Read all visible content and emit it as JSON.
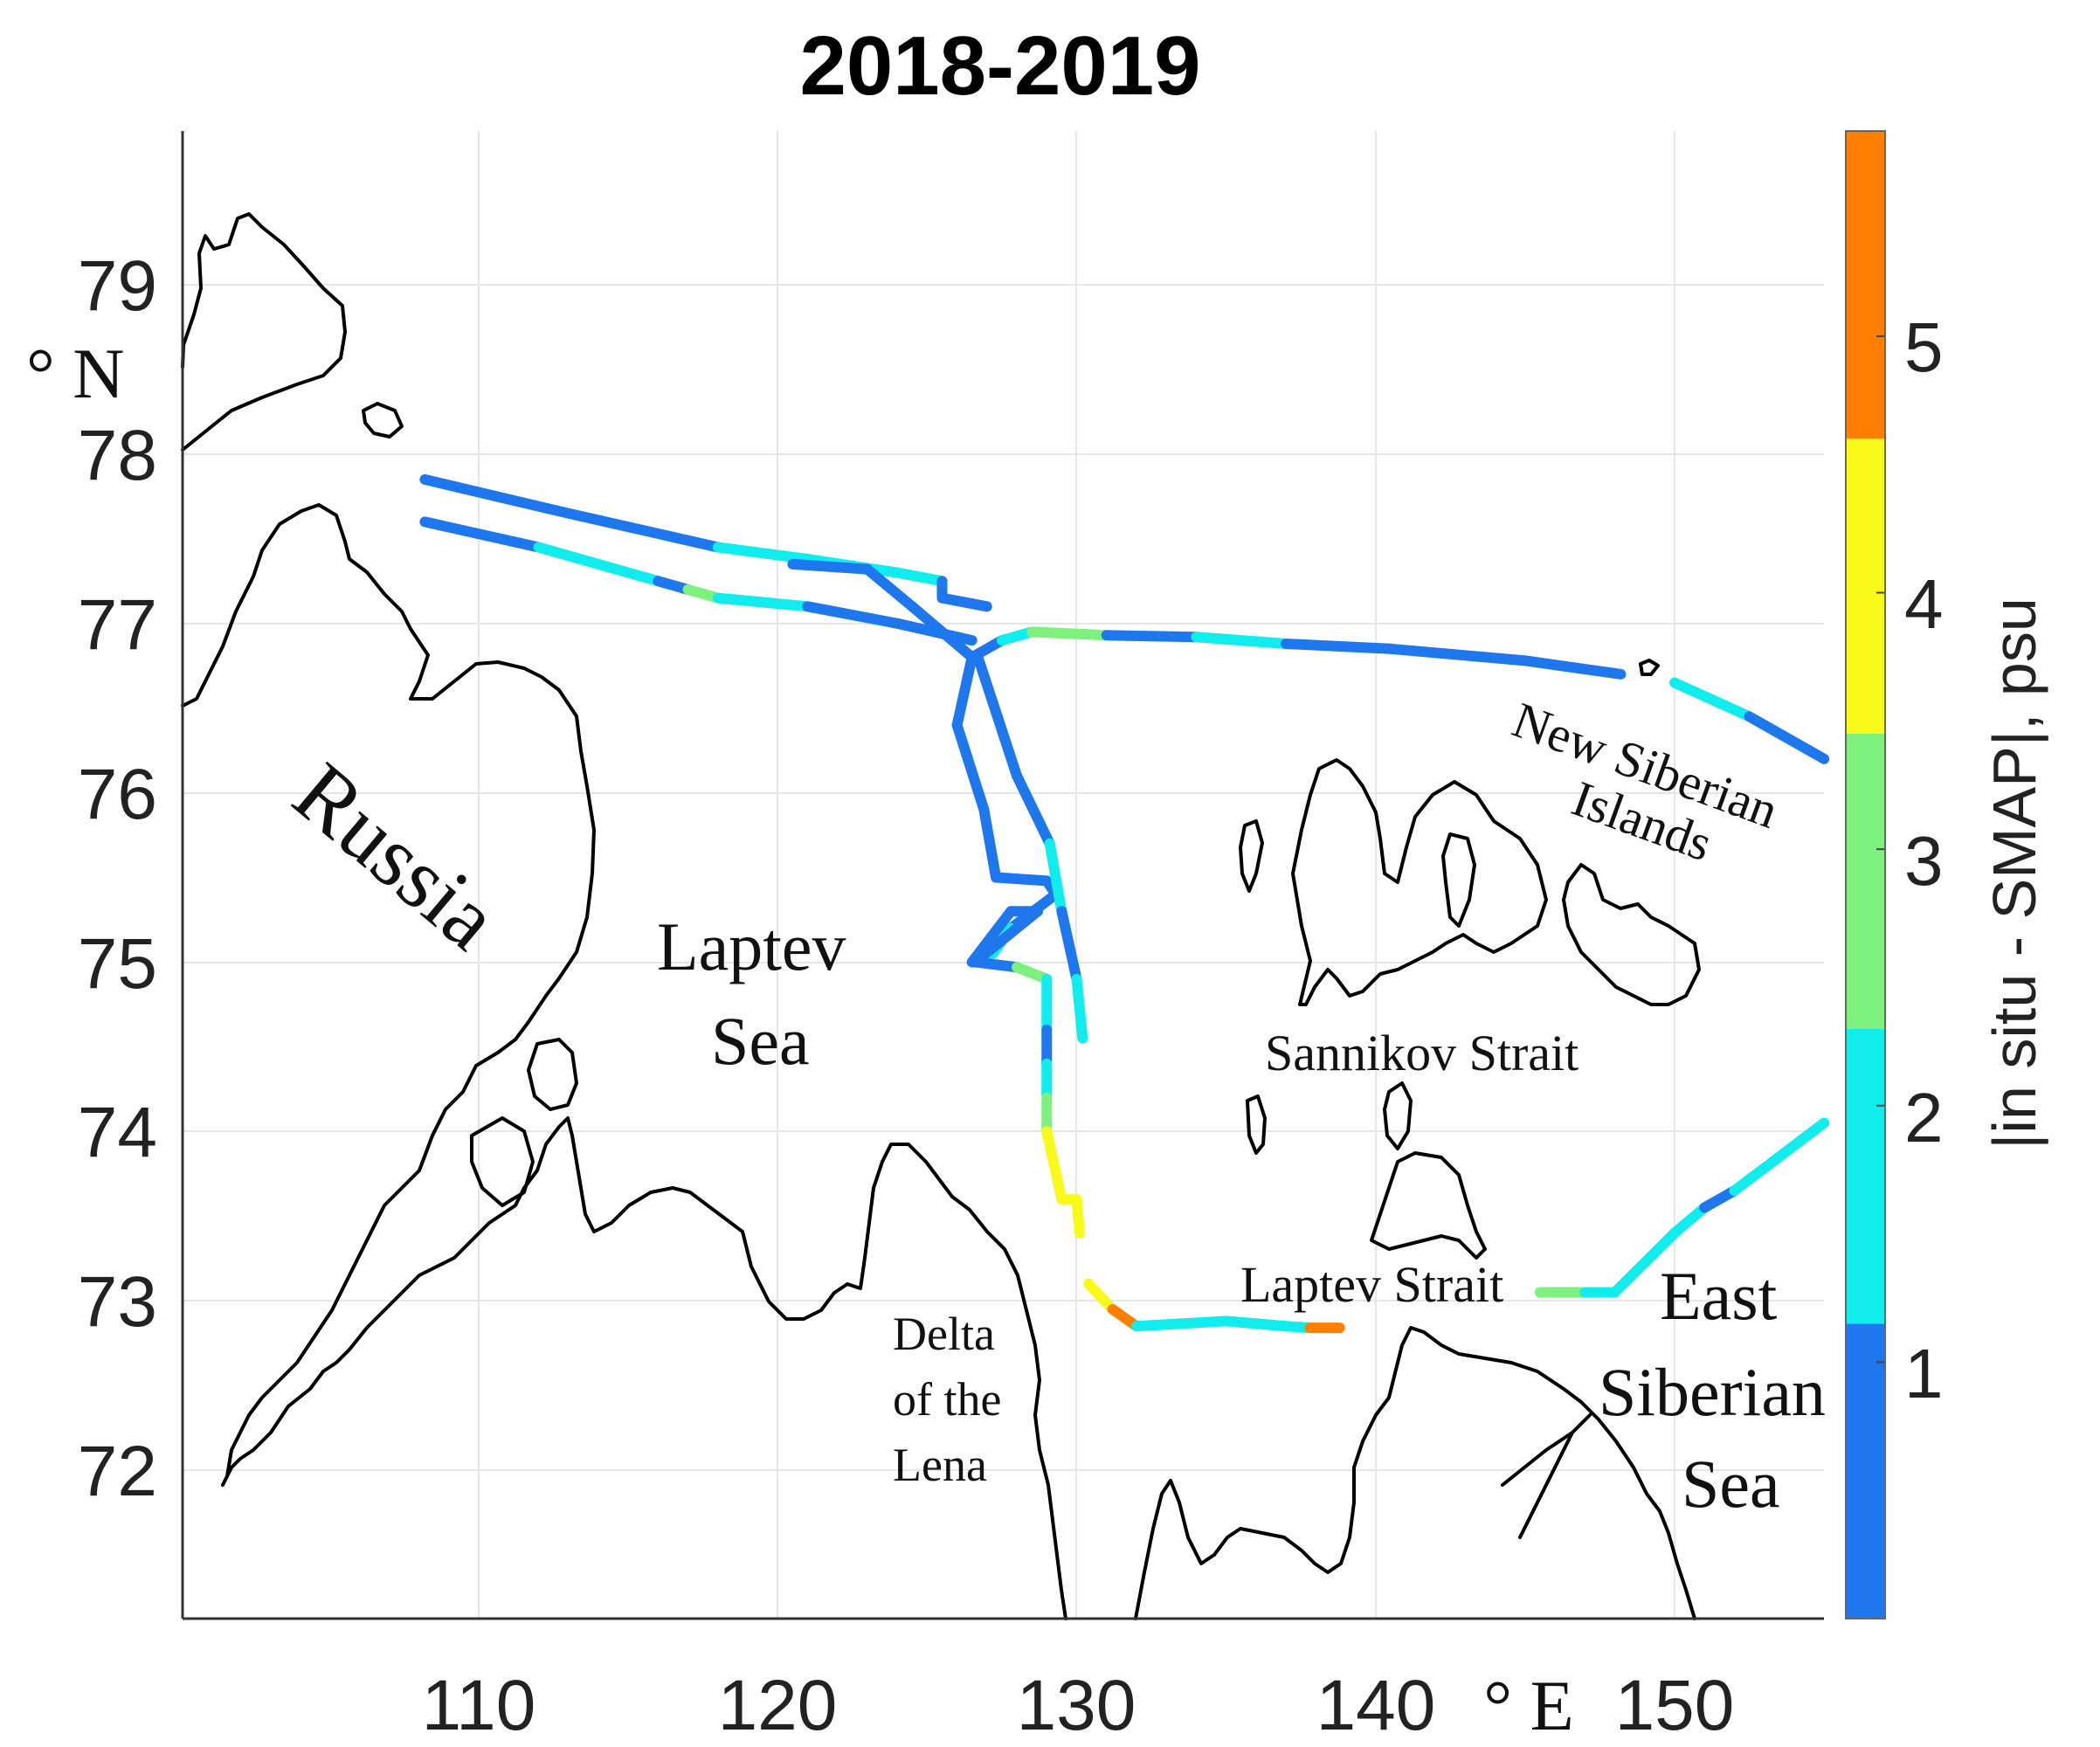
{
  "title": "2018-2019",
  "x_axis": {
    "ticks": [
      110,
      120,
      130,
      140,
      150
    ],
    "unit": "° E"
  },
  "y_axis": {
    "ticks": [
      72,
      73,
      74,
      75,
      76,
      77,
      78,
      79
    ],
    "unit": "° N"
  },
  "colorbar": {
    "label": "|in situ - SMAP|, psu",
    "ticks": [
      1,
      2,
      3,
      4,
      5
    ],
    "range": [
      0,
      5.8
    ],
    "bins": [
      {
        "from": 0,
        "to": 1.15,
        "color": "#1f77ee"
      },
      {
        "from": 1.15,
        "to": 2.3,
        "color": "#11ecec"
      },
      {
        "from": 2.3,
        "to": 3.45,
        "color": "#7df07d"
      },
      {
        "from": 3.45,
        "to": 4.6,
        "color": "#fafa1a"
      },
      {
        "from": 4.6,
        "to": 5.8,
        "color": "#ff8000"
      }
    ]
  },
  "labels": {
    "russia": "Russia",
    "laptev_sea_1": "Laptev",
    "laptev_sea_2": "Sea",
    "new_siberian_1": "New Siberian",
    "new_siberian_2": "Islands",
    "sannikov": "Sannikov Strait",
    "laptev_strait": "Laptev Strait",
    "lena_1": "Delta",
    "lena_2": "of the",
    "lena_3": "Lena",
    "east_siberian_1": "East",
    "east_siberian_2": "Siberian",
    "east_siberian_3": "Sea"
  },
  "chart_data": {
    "type": "map-track",
    "xlim": [
      100,
      155
    ],
    "ylim": [
      71.3,
      79.9
    ],
    "value": "|in situ - SMAP|, psu",
    "tracks": [
      {
        "name": "track-west-north",
        "points": [
          [
            108.2,
            77.85,
            0.6
          ],
          [
            113,
            77.65,
            0.6
          ],
          [
            118,
            77.45,
            1.6
          ],
          [
            121,
            77.38,
            1.6
          ],
          [
            124,
            77.3,
            1.6
          ],
          [
            125.5,
            77.25,
            0.6
          ],
          [
            125.5,
            77.15,
            0.6
          ],
          [
            127,
            77.1,
            0.6
          ]
        ]
      },
      {
        "name": "track-west-south",
        "points": [
          [
            108.2,
            77.6,
            0.8
          ],
          [
            112,
            77.45,
            1.6
          ],
          [
            116,
            77.25,
            0.6
          ],
          [
            117,
            77.2,
            2.5
          ],
          [
            118,
            77.15,
            1.7
          ],
          [
            121,
            77.1,
            0.8
          ],
          [
            124,
            77.0,
            0.6
          ],
          [
            126.5,
            76.9,
            0.6
          ]
        ]
      },
      {
        "name": "track-diagonal",
        "points": [
          [
            120.5,
            77.35,
            0.6
          ],
          [
            123,
            77.32,
            0.6
          ],
          [
            124.5,
            77.1,
            0.6
          ],
          [
            126.5,
            76.8,
            0.6
          ]
        ]
      },
      {
        "name": "track-east",
        "points": [
          [
            126.5,
            76.8,
            0.6
          ],
          [
            127.5,
            76.9,
            1.6
          ],
          [
            128.5,
            76.95,
            2.5
          ],
          [
            131,
            76.93,
            0.6
          ],
          [
            134,
            76.92,
            1.6
          ],
          [
            137,
            76.88,
            0.6
          ],
          [
            140.5,
            76.85,
            0.6
          ],
          [
            145,
            76.78,
            0.9
          ],
          [
            148.2,
            76.7,
            0.6
          ]
        ]
      },
      {
        "name": "track-far-east",
        "points": [
          [
            150,
            76.65,
            1.6
          ],
          [
            152.5,
            76.45,
            0.6
          ],
          [
            155,
            76.2,
            1.6
          ]
        ]
      },
      {
        "name": "track-south-loop",
        "points": [
          [
            126.5,
            76.8,
            0.6
          ],
          [
            126,
            76.4,
            0.6
          ],
          [
            126.9,
            75.9,
            0.6
          ],
          [
            127.3,
            75.5,
            0.6
          ],
          [
            129.0,
            75.48,
            0.6
          ],
          [
            129.3,
            75.4,
            0.6
          ],
          [
            127.8,
            75.2,
            1.6
          ],
          [
            127.2,
            75.05,
            1.6
          ],
          [
            126.5,
            75.0,
            0.6
          ],
          [
            127.8,
            75.3,
            0.6
          ],
          [
            128.7,
            75.3,
            0.6
          ],
          [
            126.6,
            75.0,
            0.6
          ],
          [
            128,
            74.97,
            2.5
          ],
          [
            129,
            74.9,
            1.6
          ],
          [
            129.0,
            74.6,
            0.6
          ]
        ]
      },
      {
        "name": "track-loop-east",
        "points": [
          [
            126.7,
            76.8,
            0.6
          ],
          [
            128.0,
            76.1,
            0.6
          ],
          [
            129.1,
            75.7,
            1.6
          ],
          [
            129.5,
            75.3,
            0.6
          ],
          [
            130.0,
            74.9,
            1.6
          ],
          [
            130.2,
            74.55,
            0.6
          ]
        ]
      },
      {
        "name": "track-south",
        "points": [
          [
            129.0,
            74.6,
            0.6
          ],
          [
            129.0,
            74.4,
            1.6
          ],
          [
            129.0,
            74.2,
            2.5
          ],
          [
            129.0,
            74.0,
            3.8
          ],
          [
            129.5,
            73.6,
            3.8
          ],
          [
            130.0,
            73.6,
            3.8
          ],
          [
            130.1,
            73.4,
            4.8
          ]
        ]
      },
      {
        "name": "track-laptev-strait",
        "points": [
          [
            130.4,
            73.1,
            3.8
          ],
          [
            131.2,
            72.95,
            4.8
          ],
          [
            132.0,
            72.85,
            1.6
          ],
          [
            135,
            72.88,
            1.7
          ],
          [
            137,
            72.85,
            1.6
          ],
          [
            137.8,
            72.84,
            4.8
          ],
          [
            138.8,
            72.84,
            3.8
          ]
        ]
      },
      {
        "name": "track-east-siberian",
        "points": [
          [
            145.5,
            73.05,
            2.6
          ],
          [
            147.0,
            73.05,
            1.6
          ],
          [
            148.0,
            73.05,
            1.6
          ],
          [
            150,
            73.4,
            1.6
          ],
          [
            151,
            73.55,
            0.6
          ],
          [
            152,
            73.65,
            1.6
          ],
          [
            155,
            74.05,
            2.5
          ]
        ]
      }
    ]
  }
}
